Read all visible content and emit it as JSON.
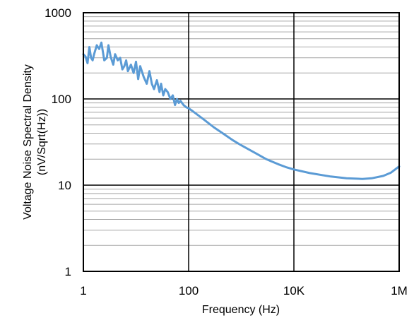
{
  "chart_data": {
    "type": "line",
    "title": "",
    "xlabel": "Frequency (Hz)",
    "ylabel_lines": [
      "Voltage Noise Spectral Density",
      "(nV/Sqrt(Hz))"
    ],
    "x_scale": "log",
    "y_scale": "log",
    "xlim": [
      1,
      1000000
    ],
    "ylim": [
      1,
      1000
    ],
    "x_ticks": [
      {
        "value": 1,
        "label": "1"
      },
      {
        "value": 100,
        "label": "100"
      },
      {
        "value": 10000,
        "label": "10K"
      },
      {
        "value": 1000000,
        "label": "1M"
      }
    ],
    "y_ticks": [
      {
        "value": 1,
        "label": "1"
      },
      {
        "value": 10,
        "label": "10"
      },
      {
        "value": 100,
        "label": "100"
      },
      {
        "value": 1000,
        "label": "1000"
      }
    ],
    "grid": true,
    "legend": "none",
    "series_color": "#5b9bd5",
    "series": [
      {
        "x": [
          1,
          1.1,
          1.2,
          1.3,
          1.4,
          1.5,
          1.6,
          1.8,
          2.0,
          2.2,
          2.5,
          2.8,
          3.0,
          3.3,
          3.7,
          4.0,
          4.5,
          5.0,
          5.5,
          6.0,
          6.5,
          7.0,
          8.0,
          9.0,
          10,
          11,
          12,
          14,
          16,
          18,
          20,
          22,
          25,
          28,
          30,
          33,
          36,
          40,
          45,
          50,
          55,
          60,
          65,
          70,
          80,
          90,
          100,
          120,
          150,
          200,
          300,
          500,
          700,
          1000,
          2000,
          3000,
          5000,
          7000,
          10000,
          20000,
          50000,
          100000,
          200000,
          300000,
          500000,
          700000,
          1000000
        ],
        "y": [
          330,
          310,
          260,
          400,
          300,
          280,
          330,
          420,
          380,
          450,
          280,
          300,
          420,
          310,
          250,
          330,
          280,
          300,
          220,
          240,
          280,
          210,
          250,
          200,
          270,
          170,
          240,
          180,
          150,
          210,
          150,
          130,
          165,
          120,
          150,
          110,
          130,
          120,
          100,
          110,
          85,
          100,
          90,
          95,
          85,
          80,
          78,
          72,
          65,
          57,
          47,
          38,
          33,
          29,
          23,
          20,
          17.5,
          16.2,
          15.2,
          13.8,
          12.6,
          12.0,
          11.8,
          12.0,
          12.8,
          14.0,
          16.5
        ]
      }
    ]
  }
}
